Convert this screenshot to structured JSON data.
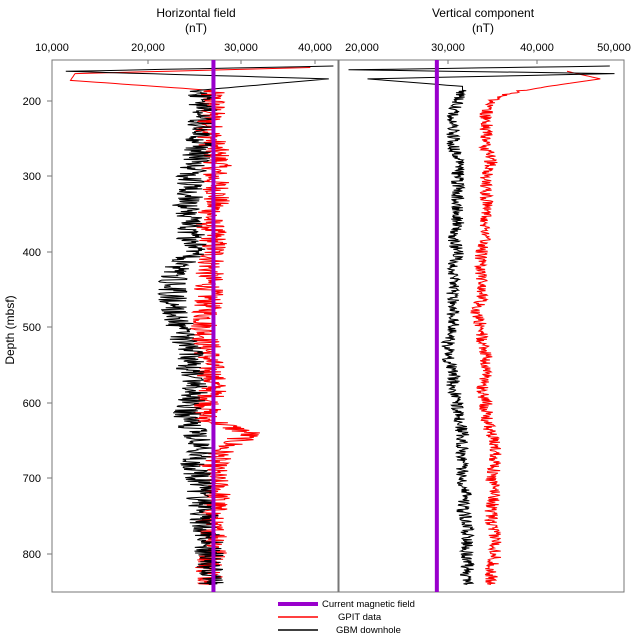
{
  "chart_data": {
    "type": "line",
    "ylabel": "Depth (mbsf)",
    "y_ticks": [
      "200",
      "300",
      "400",
      "500",
      "600",
      "700",
      "800"
    ],
    "y_range": [
      145,
      850
    ],
    "reversed_y": true,
    "legend": {
      "placement": "bottom-center",
      "entries": [
        {
          "label": "Current magnetic field",
          "color": "#9900cc"
        },
        {
          "label": "GPIT data",
          "color": "#ff0000"
        },
        {
          "label": "GBM downhole",
          "color": "#000000"
        }
      ]
    },
    "panels": [
      {
        "title": "Horizontal field",
        "units": "(nT)",
        "x_ticks": [
          "10,000",
          "20,000",
          "30,000",
          "40,000"
        ],
        "x_range": [
          10000,
          41000
        ],
        "current_field": 27500,
        "series": [
          {
            "name": "GPIT data",
            "color": "#ff0000",
            "depth": [
              155,
              163,
              172,
              185,
              200,
              230,
              260,
              280,
              300,
              320,
              340,
              360,
              380,
              400,
              430,
              460,
              500,
              540,
              580,
              620,
              640,
              660,
              680,
              700,
              720,
              740,
              760,
              780,
              800,
              820,
              840
            ],
            "value": [
              38000,
              12500,
              12000,
              27000,
              27500,
              27000,
              27500,
              28000,
              27500,
              28000,
              27500,
              27000,
              27500,
              27500,
              27000,
              27000,
              26500,
              27000,
              27500,
              26500,
              31500,
              28500,
              27500,
              27500,
              28000,
              27500,
              27000,
              28000,
              27500,
              27000,
              27500
            ]
          },
          {
            "name": "GBM downhole",
            "color": "#000000",
            "depth": [
              153,
              160,
              170,
              185,
              200,
              230,
              260,
              280,
              300,
              320,
              340,
              360,
              380,
              400,
              420,
              440,
              460,
              480,
              500,
              520,
              540,
              560,
              580,
              600,
              620,
              640,
              660,
              680,
              700,
              720,
              740,
              760,
              780,
              800,
              820,
              840
            ],
            "value": [
              40500,
              11500,
              40000,
              26000,
              26500,
              26000,
              26000,
              25500,
              25000,
              25000,
              24500,
              25000,
              25000,
              25500,
              23500,
              23000,
              23000,
              23500,
              24000,
              24500,
              25000,
              25000,
              25500,
              25000,
              24500,
              25500,
              26000,
              25500,
              26000,
              26000,
              26500,
              26500,
              27000,
              27000,
              27000,
              27000
            ]
          }
        ]
      },
      {
        "title": "Vertical component",
        "units": "(nT)",
        "x_ticks": [
          "20,000",
          "30,000",
          "40,000",
          "50,000"
        ],
        "x_range": [
          20000,
          50000
        ],
        "current_field": 30300,
        "series": [
          {
            "name": "GPIT data",
            "color": "#ff0000",
            "depth": [
              160,
              170,
              180,
              190,
              200,
              220,
              240,
              260,
              280,
              300,
              320,
              340,
              360,
              380,
              400,
              420,
              440,
              460,
              480,
              500,
              520,
              540,
              560,
              580,
              600,
              620,
              640,
              660,
              680,
              700,
              720,
              740,
              760,
              780,
              800,
              820,
              840
            ],
            "value": [
              44000,
              47500,
              42000,
              37500,
              36000,
              35500,
              35500,
              35500,
              36000,
              35500,
              35500,
              35500,
              35500,
              35500,
              35000,
              35000,
              35000,
              35000,
              34500,
              35000,
              35000,
              35500,
              35500,
              35000,
              35500,
              35500,
              36000,
              36500,
              36500,
              36000,
              36500,
              36000,
              36000,
              36500,
              36500,
              36000,
              36000
            ]
          },
          {
            "name": "GBM downhole",
            "color": "#000000",
            "depth": [
              153,
              158,
              163,
              170,
              180,
              190,
              200,
              220,
              240,
              260,
              280,
              300,
              320,
              340,
              360,
              380,
              400,
              420,
              440,
              460,
              480,
              500,
              520,
              540,
              560,
              580,
              600,
              620,
              640,
              660,
              680,
              700,
              720,
              740,
              760,
              780,
              800,
              820,
              840
            ],
            "value": [
              48500,
              21000,
              49000,
              23000,
              33000,
              33000,
              32500,
              32000,
              32000,
              32000,
              32500,
              32500,
              32500,
              32500,
              32500,
              32000,
              32500,
              32000,
              32000,
              32000,
              32000,
              32000,
              31500,
              31500,
              32000,
              32000,
              32500,
              32500,
              33000,
              33000,
              33000,
              33000,
              33500,
              33000,
              33500,
              33500,
              33500,
              33500,
              33500
            ]
          }
        ]
      }
    ]
  }
}
